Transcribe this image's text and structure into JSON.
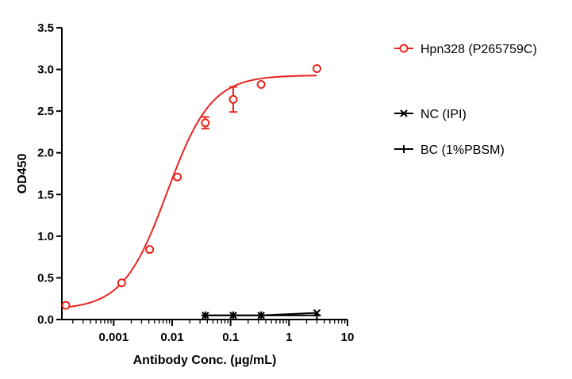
{
  "chart_data": {
    "type": "scatter",
    "x_scale": "log",
    "xlabel": "Antibody Conc. (µg/mL)",
    "ylabel": "OD450",
    "xlim": [
      0.00013,
      10
    ],
    "ylim": [
      0,
      3.5
    ],
    "x_ticks": [
      0.001,
      0.01,
      0.1,
      1,
      10
    ],
    "x_tick_labels": [
      "0.001",
      "0.01",
      "0.1",
      "1",
      "10"
    ],
    "y_ticks": [
      0,
      0.5,
      1,
      1.5,
      2,
      2.5,
      3,
      3.5
    ],
    "y_tick_labels": [
      "0.0",
      "0.5",
      "1.0",
      "1.5",
      "2.0",
      "2.5",
      "3.0",
      "3.5"
    ],
    "grid": false,
    "legend_position": "right",
    "series": [
      {
        "name": "Hpn328 (P265759C)",
        "color": "#e8251f",
        "marker": "open-circle",
        "fit": "4PL",
        "x": [
          0.000152,
          0.00137,
          0.00412,
          0.0123,
          0.037,
          0.111,
          0.333,
          3.0
        ],
        "y": [
          0.17,
          0.44,
          0.84,
          1.71,
          2.36,
          2.64,
          2.82,
          3.01
        ],
        "error": [
          0,
          0,
          0,
          0,
          0.07,
          0.15,
          0,
          0
        ],
        "fit_params": {
          "bottom": 0.12,
          "top": 2.93,
          "ec50": 0.0082,
          "hill": 1.15
        }
      },
      {
        "name": "NC (IPI)",
        "color": "#000000",
        "marker": "x",
        "x": [
          0.037,
          0.111,
          0.333,
          3.0
        ],
        "y": [
          0.05,
          0.05,
          0.05,
          0.08
        ]
      },
      {
        "name": "BC (1%PBSM)",
        "color": "#000000",
        "marker": "plus",
        "x": [
          0.037,
          0.111,
          0.333,
          3.0
        ],
        "y": [
          0.05,
          0.05,
          0.05,
          0.05
        ]
      }
    ]
  }
}
